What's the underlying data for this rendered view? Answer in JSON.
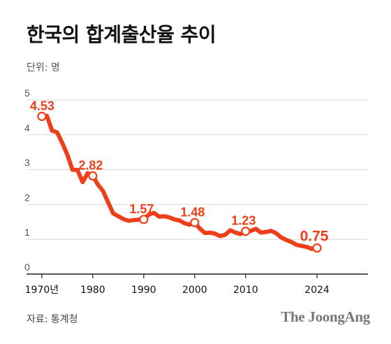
{
  "header": {
    "title": "한국의 합계출산율 추이",
    "unit": "단위: 명"
  },
  "footer": {
    "source": "자료: 통계청",
    "brand": "The JoongAng"
  },
  "colors": {
    "line": "#ef3e1a",
    "grid": "#d9d9d9",
    "axis": "#222222"
  },
  "chart_data": {
    "type": "line",
    "title": "한국의 합계출산율 추이",
    "ylabel": "단위: 명",
    "xlabel": "",
    "xlim": [
      1967,
      2034
    ],
    "ylim": [
      0,
      5
    ],
    "grid": true,
    "y_ticks": [
      0,
      1,
      2,
      3,
      4,
      5
    ],
    "x_ticks": [
      {
        "value": 1970,
        "label": "1970년"
      },
      {
        "value": 1980,
        "label": "1980"
      },
      {
        "value": 1990,
        "label": "1990"
      },
      {
        "value": 2000,
        "label": "2000"
      },
      {
        "value": 2010,
        "label": "2010"
      },
      {
        "value": 2024,
        "label": "2024"
      }
    ],
    "series": [
      {
        "x": [
          1970,
          1971,
          1972,
          1973,
          1974,
          1975,
          1976,
          1977,
          1978,
          1979,
          1980,
          1981,
          1982,
          1983,
          1984,
          1985,
          1986,
          1987,
          1988,
          1989,
          1990,
          1991,
          1992,
          1993,
          1994,
          1995,
          1996,
          1997,
          1998,
          1999,
          2000,
          2001,
          2002,
          2003,
          2004,
          2005,
          2006,
          2007,
          2008,
          2009,
          2010,
          2011,
          2012,
          2013,
          2014,
          2015,
          2016,
          2017,
          2018,
          2019,
          2020,
          2021,
          2022,
          2023,
          2024
        ],
        "values": [
          4.53,
          4.54,
          4.12,
          4.07,
          3.77,
          3.43,
          3.0,
          2.99,
          2.64,
          2.9,
          2.82,
          2.57,
          2.39,
          2.06,
          1.74,
          1.66,
          1.58,
          1.53,
          1.55,
          1.56,
          1.57,
          1.71,
          1.76,
          1.65,
          1.66,
          1.63,
          1.57,
          1.54,
          1.46,
          1.42,
          1.48,
          1.31,
          1.18,
          1.19,
          1.16,
          1.09,
          1.13,
          1.26,
          1.19,
          1.15,
          1.23,
          1.24,
          1.3,
          1.19,
          1.21,
          1.24,
          1.17,
          1.05,
          0.98,
          0.92,
          0.84,
          0.81,
          0.78,
          0.72,
          0.75
        ]
      }
    ],
    "annotations": [
      {
        "x": 1970,
        "y": 4.53,
        "label": "4.53"
      },
      {
        "x": 1980,
        "y": 2.82,
        "label": "2.82"
      },
      {
        "x": 1990,
        "y": 1.57,
        "label": "1.57"
      },
      {
        "x": 2000,
        "y": 1.48,
        "label": "1.48"
      },
      {
        "x": 2010,
        "y": 1.23,
        "label": "1.23"
      },
      {
        "x": 2024,
        "y": 0.75,
        "label": "0.75"
      }
    ]
  }
}
